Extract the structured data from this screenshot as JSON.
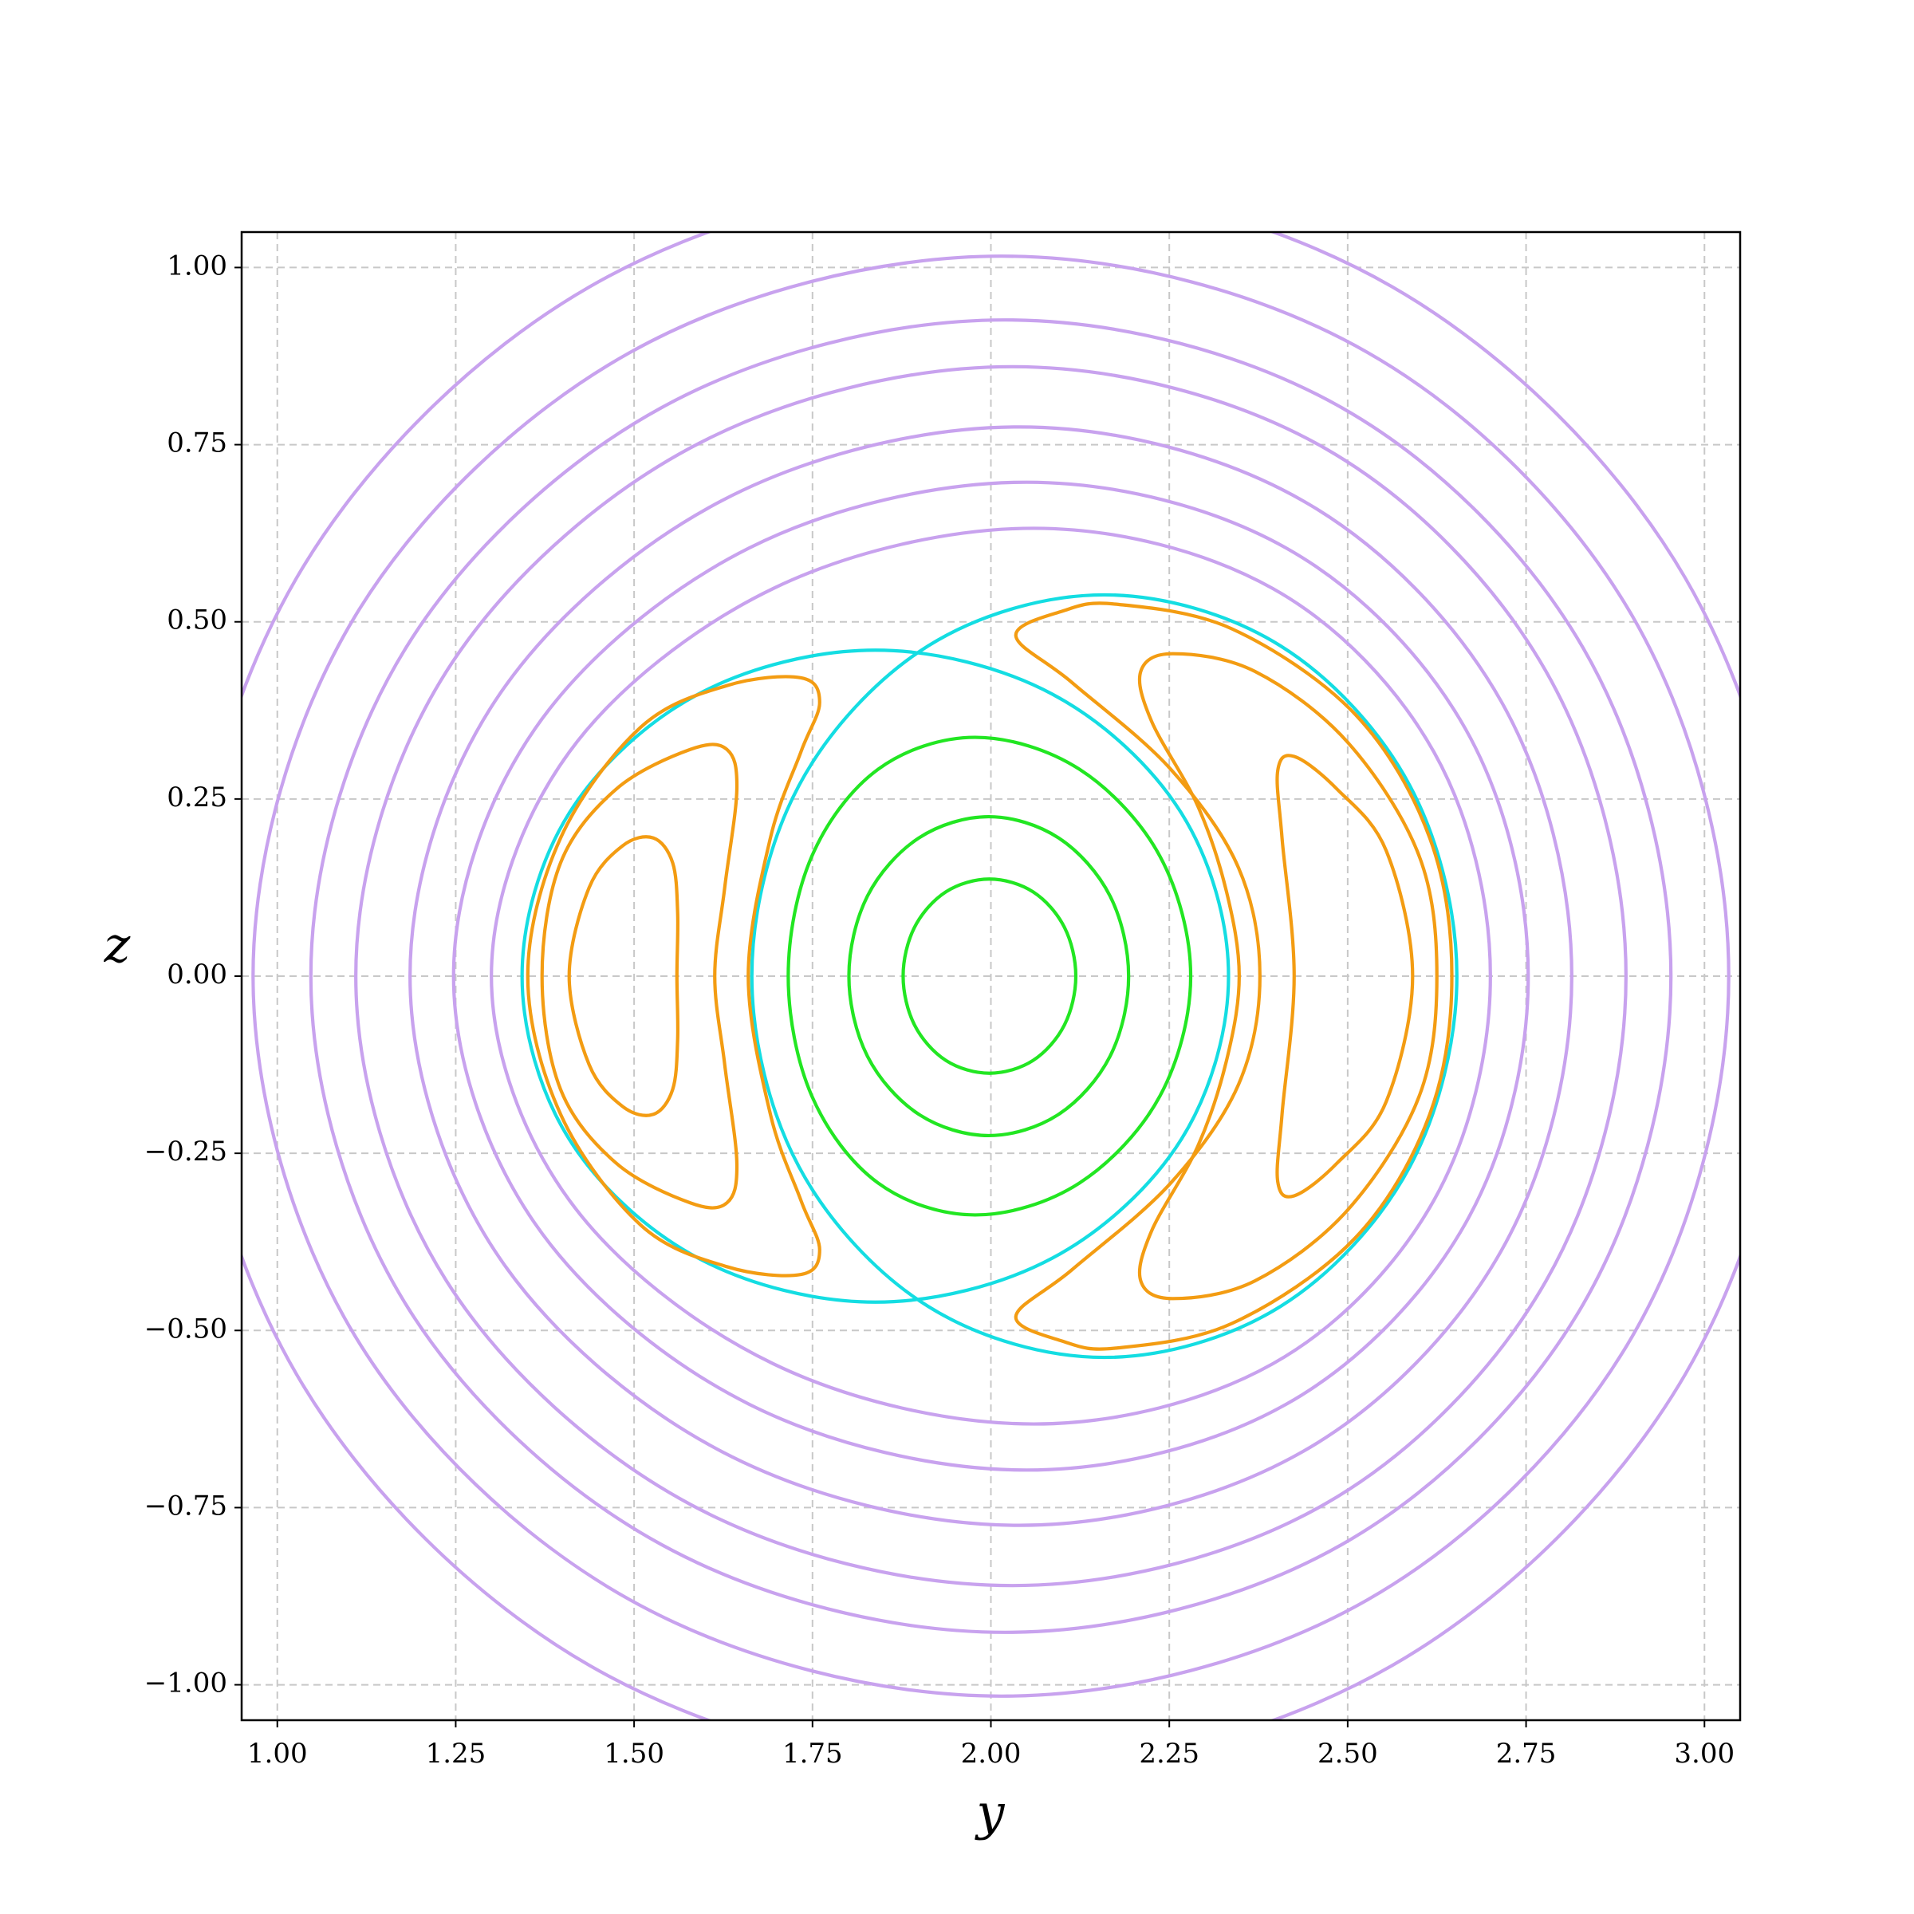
{
  "chart_data": {
    "type": "line",
    "x_label": "y",
    "y_label": "z",
    "xlim": [
      0.95,
      3.05
    ],
    "ylim": [
      -1.05,
      1.05
    ],
    "xticks": [
      {
        "value": 1,
        "label": "1.00"
      },
      {
        "value": 1.25,
        "label": "1.25"
      },
      {
        "value": 1.5,
        "label": "1.50"
      },
      {
        "value": 1.75,
        "label": "1.75"
      },
      {
        "value": 2,
        "label": "2.00"
      },
      {
        "value": 2.25,
        "label": "2.25"
      },
      {
        "value": 2.5,
        "label": "2.50"
      },
      {
        "value": 2.75,
        "label": "2.75"
      },
      {
        "value": 3,
        "label": "3.00"
      }
    ],
    "yticks": [
      {
        "value": -1,
        "label": "−1.00"
      },
      {
        "value": -0.75,
        "label": "−0.75"
      },
      {
        "value": -0.5,
        "label": "−0.50"
      },
      {
        "value": -0.25,
        "label": "−0.25"
      },
      {
        "value": 0,
        "label": "0.00"
      },
      {
        "value": 0.25,
        "label": "0.25"
      },
      {
        "value": 0.5,
        "label": "0.50"
      },
      {
        "value": 0.75,
        "label": "0.75"
      },
      {
        "value": 1,
        "label": "1.00"
      }
    ],
    "grid": true,
    "series": [
      {
        "color": "#c8a2ee",
        "x": [
          2.7,
          2.621,
          2.395,
          2.06,
          1.695,
          1.409,
          1.3,
          1.409,
          1.695,
          2.06,
          2.395,
          2.621,
          2.7
        ],
        "values": [
          0,
          0.316,
          0.547,
          0.632,
          0.547,
          0.316,
          0,
          -0.316,
          -0.547,
          -0.632,
          -0.547,
          -0.316,
          0
        ]
      },
      {
        "color": "#c8a2ee",
        "x": [
          2.753,
          2.665,
          2.414,
          2.05,
          1.661,
          1.361,
          1.247,
          1.361,
          1.661,
          2.05,
          2.414,
          2.665,
          2.753
        ],
        "values": [
          0,
          0.349,
          0.604,
          0.697,
          0.604,
          0.349,
          0,
          -0.349,
          -0.604,
          -0.697,
          -0.604,
          -0.349,
          0
        ]
      },
      {
        "color": "#c8a2ee",
        "x": [
          2.814,
          2.715,
          2.437,
          2.04,
          1.623,
          1.305,
          1.186,
          1.305,
          1.623,
          2.04,
          2.437,
          2.715,
          2.814
        ],
        "values": [
          0,
          0.388,
          0.671,
          0.775,
          0.671,
          0.388,
          0,
          -0.388,
          -0.671,
          -0.775,
          -0.671,
          -0.388,
          0
        ]
      },
      {
        "color": "#c8a2ee",
        "x": [
          2.89,
          2.778,
          2.468,
          2.03,
          1.578,
          1.237,
          1.11,
          1.237,
          1.578,
          2.03,
          2.468,
          2.778,
          2.89
        ],
        "values": [
          0,
          0.43,
          0.745,
          0.86,
          0.745,
          0.43,
          0,
          -0.43,
          -0.745,
          -0.86,
          -0.745,
          -0.43,
          0
        ]
      },
      {
        "color": "#c8a2ee",
        "x": [
          2.953,
          2.83,
          2.492,
          2.02,
          1.538,
          1.18,
          1.047,
          1.18,
          1.538,
          2.02,
          2.492,
          2.83,
          2.953
        ],
        "values": [
          0,
          0.463,
          0.802,
          0.926,
          0.802,
          0.463,
          0,
          -0.463,
          -0.802,
          -0.926,
          -0.802,
          -0.463,
          0
        ]
      },
      {
        "color": "#c8a2ee",
        "x": [
          3.034,
          2.899,
          2.528,
          2.015,
          1.494,
          1.109,
          0.966,
          1.109,
          1.494,
          2.015,
          2.528,
          2.899,
          3.034
        ],
        "values": [
          0,
          0.508,
          0.88,
          1.016,
          0.88,
          0.508,
          0,
          -0.508,
          -0.88,
          -1.016,
          -0.88,
          -0.508,
          0
        ]
      },
      {
        "color": "#c8a2ee",
        "x": [
          3.124,
          2.973,
          2.562,
          2.0,
          1.438,
          1.027,
          0.876,
          1.027,
          1.438,
          2.0,
          2.562,
          2.973,
          3.124
        ],
        "values": [
          0,
          0.562,
          0.973,
          1.124,
          0.973,
          0.562,
          0,
          -0.562,
          -0.973,
          -1.124,
          -0.973,
          -0.562,
          0
        ]
      },
      {
        "color": "#14dde2",
        "x": [
          2.333,
          2.267,
          2.086,
          1.838,
          1.59,
          1.409,
          1.343,
          1.409,
          1.59,
          1.838,
          2.086,
          2.267,
          2.333
        ],
        "values": [
          0,
          0.23,
          0.398,
          0.46,
          0.398,
          0.23,
          0,
          -0.23,
          -0.398,
          -0.46,
          -0.398,
          -0.23,
          0
        ]
      },
      {
        "color": "#14dde2",
        "x": [
          2.653,
          2.587,
          2.406,
          2.159,
          1.912,
          1.731,
          1.665,
          1.731,
          1.912,
          2.159,
          2.406,
          2.587,
          2.653
        ],
        "values": [
          0,
          0.269,
          0.466,
          0.538,
          0.466,
          0.269,
          0,
          -0.269,
          -0.466,
          -0.538,
          -0.466,
          -0.269,
          0
        ]
      },
      {
        "color": "#22e622",
        "x": [
          2.119,
          2.103,
          2.059,
          1.998,
          1.937,
          1.893,
          1.877,
          1.893,
          1.937,
          1.998,
          2.059,
          2.103,
          2.119
        ],
        "values": [
          0,
          0.069,
          0.119,
          0.137,
          0.119,
          0.069,
          0,
          -0.069,
          -0.119,
          -0.137,
          -0.119,
          -0.069,
          0
        ]
      },
      {
        "color": "#22e622",
        "x": [
          2.193,
          2.167,
          2.095,
          1.997,
          1.899,
          1.827,
          1.801,
          1.827,
          1.899,
          1.997,
          2.095,
          2.167,
          2.193
        ],
        "values": [
          0,
          0.113,
          0.195,
          0.225,
          0.195,
          0.113,
          0,
          -0.113,
          -0.195,
          -0.225,
          -0.195,
          -0.113,
          0
        ]
      },
      {
        "color": "#22e622",
        "x": [
          2.28,
          2.237,
          2.124,
          1.978,
          1.842,
          1.749,
          1.716,
          1.749,
          1.842,
          1.978,
          2.124,
          2.237,
          2.28
        ],
        "values": [
          0,
          0.169,
          0.292,
          0.337,
          0.292,
          0.169,
          0,
          -0.169,
          -0.292,
          -0.337,
          -0.292,
          -0.169,
          0
        ]
      },
      {
        "color": "#f39c12",
        "x": [
          1.56,
          1.561,
          1.554,
          1.527,
          1.484,
          1.437,
          1.409,
          1.437,
          1.484,
          1.527,
          1.554,
          1.561,
          1.56
        ],
        "values": [
          0,
          0.09,
          0.16,
          0.195,
          0.184,
          0.125,
          0,
          -0.125,
          -0.184,
          -0.195,
          -0.16,
          -0.09,
          0
        ]
      },
      {
        "color": "#f39c12",
        "x": [
          1.613,
          1.627,
          1.644,
          1.63,
          1.579,
          1.475,
          1.397,
          1.371,
          1.397,
          1.475,
          1.579,
          1.63,
          1.644,
          1.627,
          1.613
        ],
        "values": [
          0,
          0.125,
          0.264,
          0.32,
          0.32,
          0.264,
          0.16,
          0,
          -0.16,
          -0.264,
          -0.32,
          -0.32,
          -0.264,
          -0.125,
          0
        ]
      },
      {
        "color": "#f39c12",
        "x": [
          1.66,
          1.691,
          1.734,
          1.76,
          1.734,
          1.63,
          1.509,
          1.397,
          1.351,
          1.397,
          1.509,
          1.63,
          1.734,
          1.76,
          1.734,
          1.691,
          1.66
        ],
        "values": [
          0,
          0.195,
          0.317,
          0.386,
          0.421,
          0.41,
          0.351,
          0.195,
          0,
          -0.195,
          -0.351,
          -0.41,
          -0.421,
          -0.386,
          -0.317,
          -0.195,
          0
        ]
      },
      {
        "color": "#f39c12",
        "x": [
          2.646,
          2.615,
          2.511,
          2.338,
          2.174,
          2.1,
          2.035,
          2.114,
          2.252,
          2.347,
          2.377,
          2.347,
          2.252,
          2.114,
          2.035,
          2.1,
          2.174,
          2.338,
          2.511,
          2.615,
          2.646
        ],
        "values": [
          0,
          0.195,
          0.369,
          0.49,
          0.525,
          0.515,
          0.48,
          0.414,
          0.292,
          0.153,
          0,
          -0.153,
          -0.292,
          -0.414,
          -0.48,
          -0.515,
          -0.525,
          -0.49,
          -0.369,
          -0.195,
          0
        ]
      },
      {
        "color": "#f39c12",
        "x": [
          2.625,
          2.6,
          2.5,
          2.37,
          2.255,
          2.21,
          2.225,
          2.29,
          2.33,
          2.348,
          2.33,
          2.29,
          2.225,
          2.21,
          2.255,
          2.37,
          2.5,
          2.6,
          2.625
        ],
        "values": [
          0,
          0.17,
          0.33,
          0.43,
          0.455,
          0.43,
          0.36,
          0.24,
          0.12,
          0,
          -0.12,
          -0.24,
          -0.36,
          -0.43,
          -0.455,
          -0.43,
          -0.33,
          -0.17,
          0
        ]
      },
      {
        "color": "#f39c12",
        "x": [
          2.591,
          2.554,
          2.485,
          2.425,
          2.402,
          2.408,
          2.425,
          2.408,
          2.402,
          2.425,
          2.485,
          2.554,
          2.591
        ],
        "values": [
          0,
          0.177,
          0.264,
          0.31,
          0.29,
          0.195,
          0,
          -0.195,
          -0.29,
          -0.31,
          -0.264,
          -0.177,
          0
        ]
      }
    ]
  }
}
